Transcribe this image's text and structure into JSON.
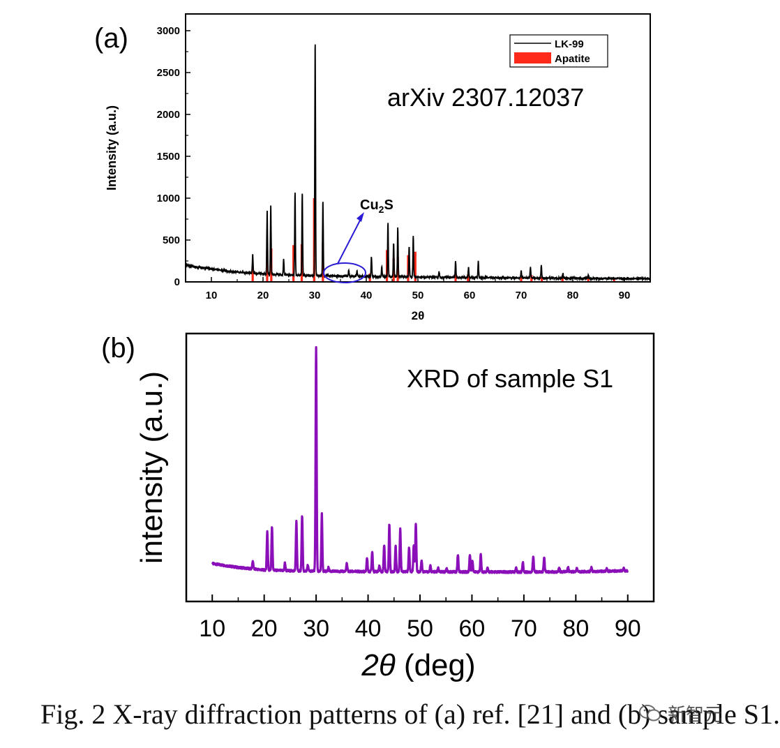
{
  "chart_data": [
    {
      "panel": "(a)",
      "type": "line",
      "annotation_text": "arXiv 2307.12037",
      "phase_label": "Cu",
      "phase_sub": "2",
      "phase_tail": "S",
      "xlabel": "2θ",
      "ylabel": "Intensity (a.u.)",
      "xlim": [
        5,
        95
      ],
      "ylim": [
        0,
        3200
      ],
      "xticks": [
        10,
        20,
        30,
        40,
        50,
        60,
        70,
        80,
        90
      ],
      "yticks": [
        0,
        500,
        1000,
        1500,
        2000,
        2500,
        3000
      ],
      "legend": {
        "placement": "top-right",
        "entries": [
          "LK-99",
          "Apatite"
        ]
      },
      "colors": {
        "line": "#000000",
        "apatite": "#ff2a1a",
        "marker": "#2a1ad6"
      },
      "baseline": [
        [
          5,
          200
        ],
        [
          10,
          155
        ],
        [
          15,
          115
        ],
        [
          20,
          95
        ],
        [
          25,
          82
        ],
        [
          30,
          75
        ],
        [
          40,
          65
        ],
        [
          50,
          58
        ],
        [
          60,
          52
        ],
        [
          70,
          48
        ],
        [
          80,
          44
        ],
        [
          90,
          40
        ],
        [
          95,
          38
        ]
      ],
      "peaks": [
        [
          18.0,
          230
        ],
        [
          20.8,
          760
        ],
        [
          21.5,
          820
        ],
        [
          24.0,
          180
        ],
        [
          26.2,
          990
        ],
        [
          27.6,
          990
        ],
        [
          30.1,
          2800
        ],
        [
          31.6,
          900
        ],
        [
          36.6,
          70
        ],
        [
          38.2,
          60
        ],
        [
          41.0,
          240
        ],
        [
          43.0,
          120
        ],
        [
          44.2,
          640
        ],
        [
          45.3,
          410
        ],
        [
          46.1,
          580
        ],
        [
          48.3,
          360
        ],
        [
          49.1,
          480
        ],
        [
          54.1,
          70
        ],
        [
          57.3,
          190
        ],
        [
          59.8,
          120
        ],
        [
          61.7,
          200
        ],
        [
          70.0,
          80
        ],
        [
          71.8,
          130
        ],
        [
          73.9,
          150
        ],
        [
          78.1,
          50
        ],
        [
          83.0,
          40
        ]
      ],
      "apatite": [
        [
          18.0,
          160
        ],
        [
          20.8,
          380
        ],
        [
          21.6,
          400
        ],
        [
          25.9,
          440
        ],
        [
          27.5,
          450
        ],
        [
          29.9,
          1000
        ],
        [
          31.6,
          460
        ],
        [
          40.7,
          100
        ],
        [
          44.0,
          380
        ],
        [
          45.3,
          280
        ],
        [
          46.1,
          300
        ],
        [
          48.1,
          320
        ],
        [
          49.5,
          360
        ],
        [
          57.3,
          110
        ],
        [
          59.7,
          90
        ],
        [
          70.0,
          60
        ],
        [
          72.0,
          80
        ],
        [
          74.0,
          60
        ],
        [
          78.0,
          60
        ],
        [
          83.0,
          40
        ],
        [
          88.0,
          30
        ]
      ]
    },
    {
      "panel": "(b)",
      "type": "line",
      "annotation_text": "XRD of sample S1",
      "xlabel_italic": "2θ",
      "xlabel_rest": " (deg)",
      "ylabel": "intensity (a.u.)",
      "xlim": [
        5,
        95
      ],
      "ylim": [
        -150,
        1230
      ],
      "xticks": [
        10,
        20,
        30,
        40,
        50,
        60,
        70,
        80,
        90
      ],
      "colors": {
        "line": "#8a0fb8"
      },
      "baseline": [
        [
          10,
          45
        ],
        [
          15,
          25
        ],
        [
          20,
          12
        ],
        [
          25,
          8
        ],
        [
          30,
          6
        ],
        [
          40,
          4
        ],
        [
          50,
          3
        ],
        [
          60,
          2
        ],
        [
          70,
          2
        ],
        [
          80,
          3
        ],
        [
          90,
          8
        ]
      ],
      "peaks": [
        [
          17.8,
          40
        ],
        [
          20.6,
          200
        ],
        [
          21.5,
          225
        ],
        [
          24.0,
          40
        ],
        [
          26.2,
          255
        ],
        [
          27.3,
          285
        ],
        [
          28.4,
          30
        ],
        [
          30.0,
          1150
        ],
        [
          31.1,
          300
        ],
        [
          32.4,
          20
        ],
        [
          35.9,
          40
        ],
        [
          39.8,
          70
        ],
        [
          40.8,
          105
        ],
        [
          42.2,
          30
        ],
        [
          43.1,
          140
        ],
        [
          44.1,
          245
        ],
        [
          45.3,
          135
        ],
        [
          46.2,
          220
        ],
        [
          47.9,
          125
        ],
        [
          48.8,
          140
        ],
        [
          49.2,
          250
        ],
        [
          50.3,
          60
        ],
        [
          52.0,
          30
        ],
        [
          53.5,
          20
        ],
        [
          55.1,
          20
        ],
        [
          57.3,
          90
        ],
        [
          59.6,
          90
        ],
        [
          60.1,
          60
        ],
        [
          61.7,
          95
        ],
        [
          63.0,
          20
        ],
        [
          68.5,
          20
        ],
        [
          69.8,
          50
        ],
        [
          71.8,
          80
        ],
        [
          73.9,
          75
        ],
        [
          76.8,
          20
        ],
        [
          78.5,
          25
        ],
        [
          80.2,
          20
        ],
        [
          83.0,
          20
        ],
        [
          86.0,
          15
        ],
        [
          89.2,
          15
        ]
      ]
    }
  ],
  "caption": "Fig. 2 X-ray diffraction patterns of (a) ref. [21] and (b) sample S1.",
  "watermark": "新智元",
  "watermark_icon": "wechat-icon"
}
